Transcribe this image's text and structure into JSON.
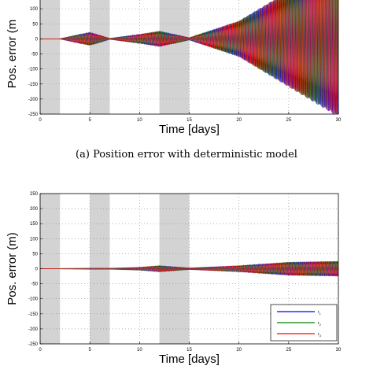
{
  "chart_data": [
    {
      "type": "line",
      "caption": "(a) Position error with deterministic model",
      "xlabel": "Time [days]",
      "ylabel": "Pos. error (m",
      "xlim": [
        0,
        30
      ],
      "ylim": [
        -250,
        150
      ],
      "xticks": [
        0,
        5,
        10,
        15,
        20,
        25,
        30
      ],
      "yticks": [
        -250,
        -200,
        -150,
        -100,
        -50,
        0,
        50,
        100
      ],
      "grid": true,
      "legend": false,
      "shaded_intervals": [
        [
          0,
          2
        ],
        [
          5,
          7
        ],
        [
          12,
          15
        ]
      ],
      "shaded_color": "#d3d3d3",
      "series": [
        {
          "color": "#0000ff",
          "envelope": {
            "x": [
              2,
              4,
              5,
              7,
              10,
              12,
              15,
              20,
              25,
              30
            ],
            "amplitude": [
              1,
              15,
              22,
              2,
              15,
              26,
              4,
              60,
              160,
              260
            ]
          }
        },
        {
          "color": "#008000",
          "envelope": {
            "x": [
              2,
              4,
              5,
              7,
              10,
              12,
              15,
              20,
              25,
              30
            ],
            "amplitude": [
              1,
              15,
              22,
              2,
              15,
              26,
              4,
              60,
              160,
              260
            ]
          }
        },
        {
          "color": "#ff0000",
          "envelope": {
            "x": [
              2,
              4,
              5,
              7,
              10,
              12,
              15,
              20,
              25,
              30
            ],
            "amplitude": [
              1,
              15,
              22,
              2,
              15,
              26,
              4,
              60,
              160,
              260
            ]
          }
        }
      ]
    },
    {
      "type": "line",
      "caption": "",
      "xlabel": "Time [days]",
      "ylabel": "Pos. error (m)",
      "xlim": [
        0,
        30
      ],
      "ylim": [
        -250,
        250
      ],
      "xticks": [
        0,
        5,
        10,
        15,
        20,
        25,
        30
      ],
      "yticks": [
        -250,
        -200,
        -150,
        -100,
        -50,
        0,
        50,
        100,
        150,
        200,
        250
      ],
      "grid": true,
      "legend": true,
      "legend_position": "bottom-right",
      "shaded_intervals": [
        [
          0,
          2
        ],
        [
          5,
          7
        ],
        [
          12,
          15
        ]
      ],
      "shaded_color": "#d3d3d3",
      "series": [
        {
          "name": "r",
          "subscript": "1",
          "color": "#0000ff",
          "envelope": {
            "x": [
              2,
              5,
              7,
              10,
              12,
              15,
              20,
              25,
              30
            ],
            "amplitude": [
              1,
              2,
              2,
              5,
              10,
              3,
              10,
              22,
              25
            ]
          }
        },
        {
          "name": "r",
          "subscript": "2",
          "color": "#008000",
          "envelope": {
            "x": [
              2,
              5,
              7,
              10,
              12,
              15,
              20,
              25,
              30
            ],
            "amplitude": [
              1,
              2,
              2,
              5,
              10,
              3,
              10,
              22,
              25
            ]
          }
        },
        {
          "name": "r",
          "subscript": "3",
          "color": "#ff0000",
          "envelope": {
            "x": [
              2,
              5,
              7,
              10,
              12,
              15,
              20,
              25,
              30
            ],
            "amplitude": [
              1,
              2,
              2,
              5,
              10,
              3,
              10,
              22,
              25
            ]
          }
        }
      ]
    }
  ]
}
